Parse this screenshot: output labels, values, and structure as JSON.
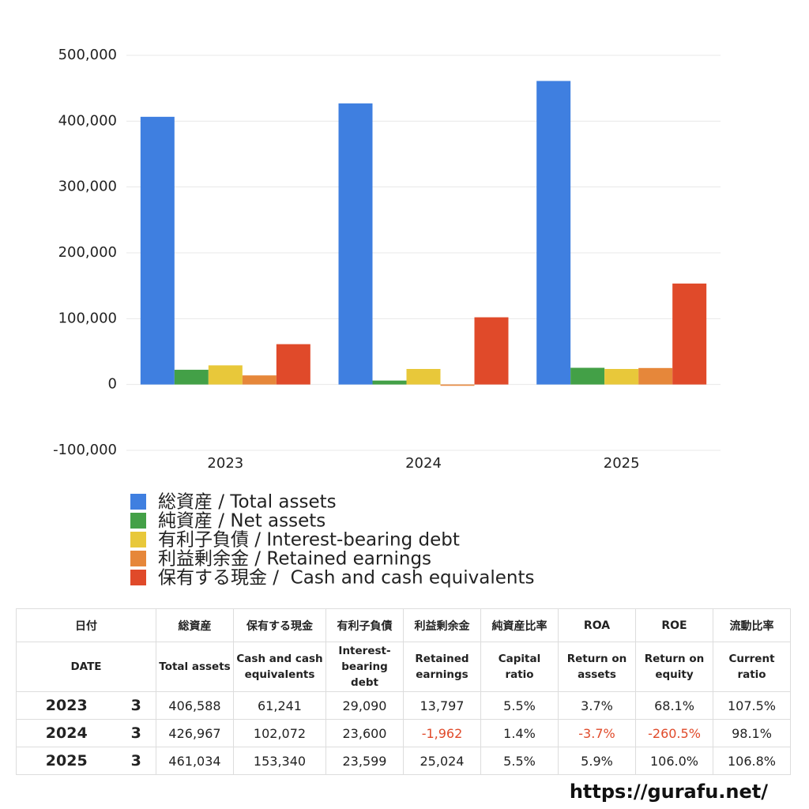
{
  "chart_data": {
    "type": "bar",
    "categories": [
      "2023",
      "2024",
      "2025"
    ],
    "series": [
      {
        "name": "総資産 / Total assets",
        "color": "#3f7fe0",
        "values": [
          406588,
          426967,
          461034
        ]
      },
      {
        "name": "純資産 / Net assets",
        "color": "#43a047",
        "values": [
          22362,
          5978,
          25357
        ]
      },
      {
        "name": "有利子負債 / Interest-bearing debt",
        "color": "#e8c83a",
        "values": [
          29090,
          23600,
          23599
        ]
      },
      {
        "name": "利益剰余金 / Retained earnings",
        "color": "#e6873a",
        "values": [
          13797,
          -1962,
          25024
        ]
      },
      {
        "name": "保有する現金 /  Cash and cash equivalents",
        "color": "#e04a2a",
        "values": [
          61241,
          102072,
          153340
        ]
      }
    ],
    "ylim": [
      -100000,
      500000
    ],
    "yticks": [
      {
        "value": -100000,
        "label": "-100,000"
      },
      0,
      {
        "value": 100000,
        "label": "100,000"
      },
      {
        "value": 200000,
        "label": "200,000"
      },
      {
        "value": 300000,
        "label": "300,000"
      },
      {
        "value": 400000,
        "label": "400,000"
      },
      {
        "value": 500000,
        "label": "500,000"
      }
    ],
    "grid": true
  },
  "table": {
    "header_ja": [
      "日付",
      "総資産",
      "保有する現金",
      "有利子負債",
      "利益剰余金",
      "純資産比率",
      "ROA",
      "ROE",
      "流動比率"
    ],
    "header_en": [
      "DATE",
      "Total assets",
      "Cash and cash equivalents",
      "Interest-bearing debt",
      "Retained earnings",
      "Capital ratio",
      "Return on assets",
      "Return on equity",
      "Current ratio"
    ],
    "rows": [
      [
        "2023",
        "3",
        "406,588",
        "61,241",
        "29,090",
        "13,797",
        "5.5%",
        "3.7%",
        "68.1%",
        "107.5%"
      ],
      [
        "2024",
        "3",
        "426,967",
        "102,072",
        "23,600",
        "-1,962",
        "1.4%",
        "-3.7%",
        "-260.5%",
        "98.1%"
      ],
      [
        "2025",
        "3",
        "461,034",
        "153,340",
        "23,599",
        "25,024",
        "5.5%",
        "5.9%",
        "106.0%",
        "106.8%"
      ]
    ],
    "negative_color": "#e04a2a"
  },
  "footer": "https://gurafu.net/"
}
